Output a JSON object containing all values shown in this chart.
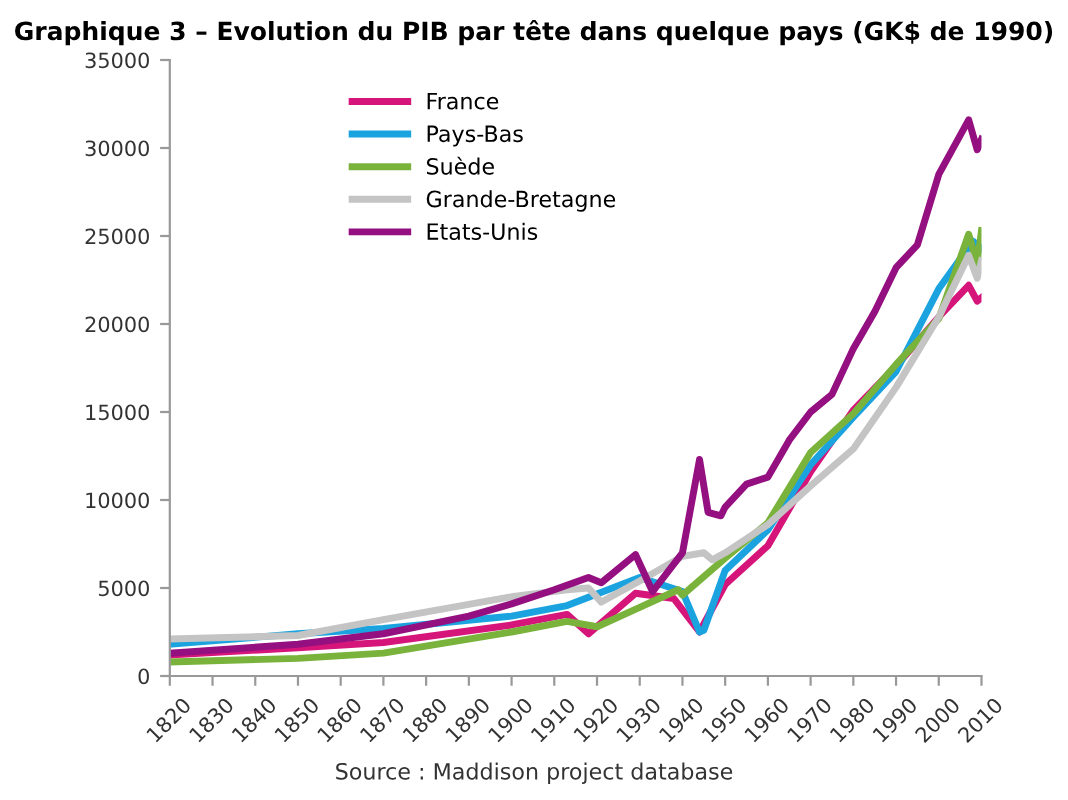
{
  "chart_data": {
    "type": "line",
    "title": "Graphique 3 – Evolution du PIB par tête dans quelque pays (GK$ de 1990)",
    "series": [
      {
        "name": "France",
        "color": "#d6157a",
        "x": [
          1820,
          1850,
          1870,
          1900,
          1913,
          1918,
          1929,
          1938,
          1944,
          1950,
          1960,
          1970,
          1980,
          1990,
          2000,
          2007,
          2009,
          2010
        ],
        "values": [
          1200,
          1600,
          1900,
          2900,
          3500,
          2400,
          4700,
          4400,
          2500,
          5200,
          7400,
          11600,
          15100,
          17600,
          20400,
          22200,
          21300,
          21500
        ]
      },
      {
        "name": "Pays-Bas",
        "color": "#1ba3e0",
        "x": [
          1820,
          1850,
          1870,
          1900,
          1913,
          1930,
          1940,
          1944,
          1945,
          1950,
          1960,
          1970,
          1980,
          1990,
          2000,
          2008,
          2010
        ],
        "values": [
          1800,
          2400,
          2700,
          3400,
          4000,
          5600,
          4800,
          2500,
          2600,
          6000,
          8300,
          12000,
          14700,
          17300,
          22000,
          24700,
          24300
        ]
      },
      {
        "name": "Suède",
        "color": "#7ab33c",
        "x": [
          1820,
          1850,
          1870,
          1900,
          1913,
          1920,
          1930,
          1939,
          1940,
          1950,
          1960,
          1970,
          1980,
          1990,
          2000,
          2007,
          2009,
          2010
        ],
        "values": [
          800,
          1000,
          1300,
          2500,
          3100,
          2800,
          3900,
          4900,
          4600,
          6700,
          8700,
          12700,
          14900,
          17700,
          20300,
          25100,
          23400,
          25300
        ]
      },
      {
        "name": "Grande-Bretagne",
        "color": "#c4c4c4",
        "x": [
          1820,
          1850,
          1870,
          1900,
          1913,
          1918,
          1921,
          1930,
          1940,
          1945,
          1947,
          1950,
          1960,
          1970,
          1980,
          1990,
          2000,
          2007,
          2009,
          2010
        ],
        "values": [
          2100,
          2300,
          3200,
          4500,
          4900,
          5000,
          4200,
          5400,
          6800,
          7000,
          6600,
          7000,
          8600,
          10800,
          12900,
          16400,
          20400,
          23900,
          22600,
          23600
        ]
      },
      {
        "name": "Etats-Unis",
        "color": "#940f80",
        "x": [
          1820,
          1850,
          1870,
          1890,
          1900,
          1910,
          1918,
          1921,
          1929,
          1933,
          1940,
          1944,
          1946,
          1949,
          1950,
          1955,
          1960,
          1965,
          1970,
          1975,
          1980,
          1985,
          1990,
          1995,
          2000,
          2007,
          2009,
          2010
        ],
        "values": [
          1300,
          1800,
          2400,
          3400,
          4100,
          4900,
          5600,
          5300,
          6900,
          4800,
          7000,
          12300,
          9300,
          9100,
          9600,
          10900,
          11300,
          13400,
          15000,
          16000,
          18600,
          20700,
          23200,
          24500,
          28500,
          31600,
          29900,
          30500
        ]
      }
    ],
    "xlim": [
      1820,
      2010
    ],
    "xticks": [
      1820,
      1830,
      1840,
      1850,
      1860,
      1870,
      1880,
      1890,
      1900,
      1910,
      1920,
      1930,
      1940,
      1950,
      1960,
      1970,
      1980,
      1990,
      2000,
      2010
    ],
    "ylim": [
      0,
      35000
    ],
    "yticks": [
      0,
      5000,
      10000,
      15000,
      20000,
      25000,
      30000,
      35000
    ],
    "grid": false,
    "legend": "top left",
    "annotations": [
      "Source : Maddison project database"
    ]
  }
}
